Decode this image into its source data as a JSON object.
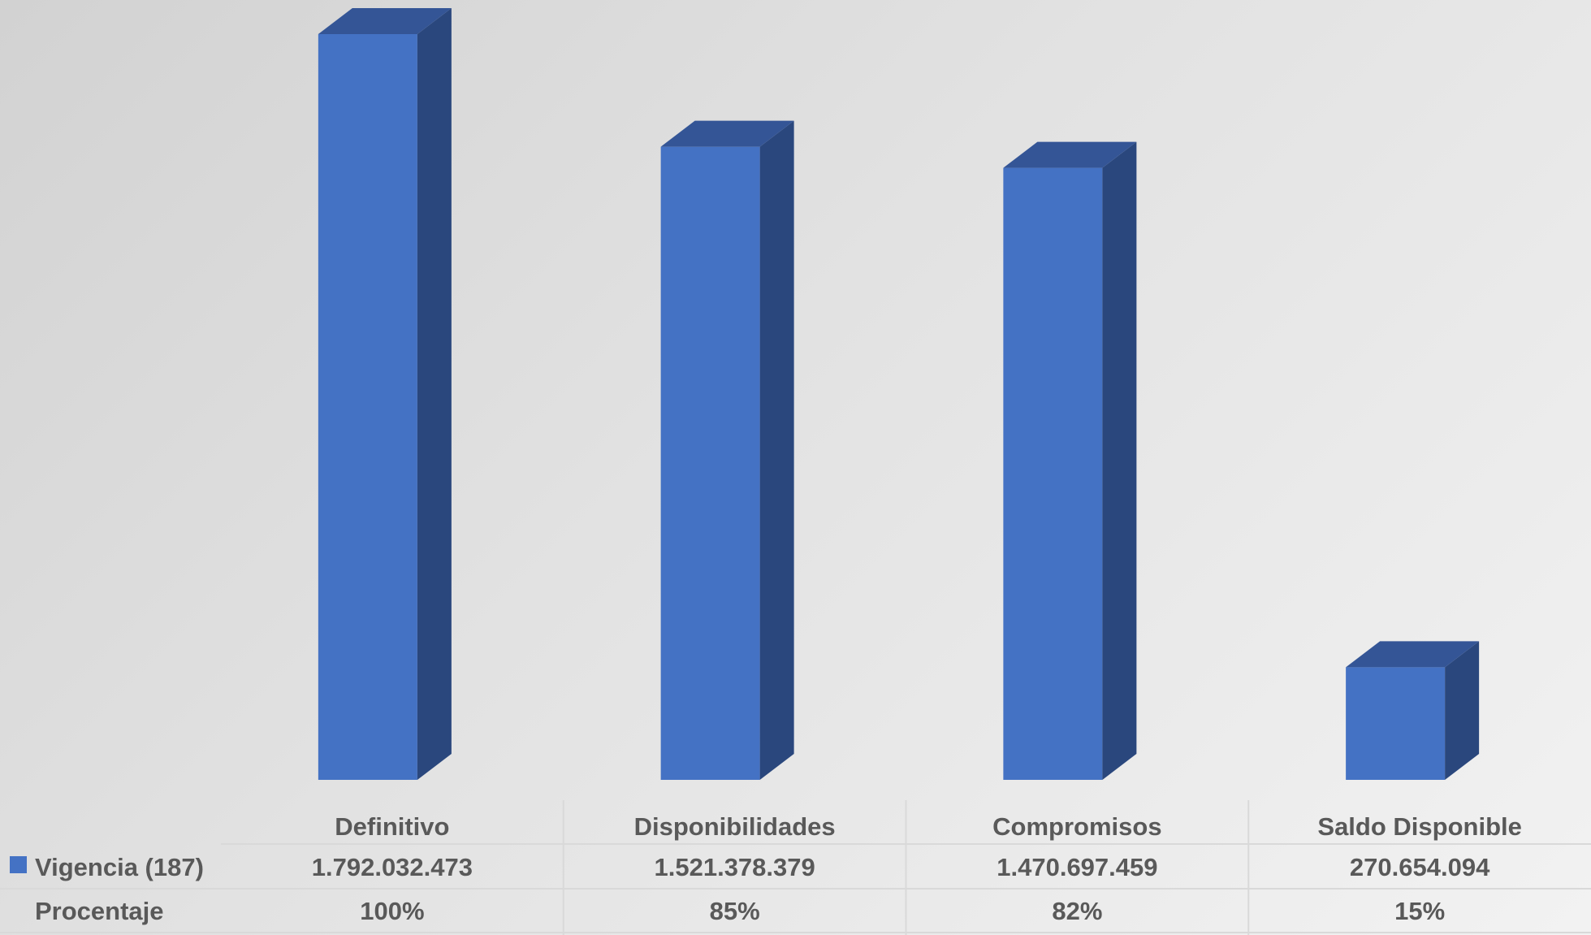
{
  "chart_data": {
    "type": "bar",
    "style": "3d-column",
    "categories": [
      "Definitivo",
      "Disponibilidades",
      "Compromisos",
      "Saldo Disponible"
    ],
    "series": [
      {
        "name": "Vigencia (187)",
        "values": [
          1792032473,
          1521378379,
          1470697459,
          270654094
        ],
        "value_labels": [
          "1.792.032.473",
          "1.521.378.379",
          "1.470.697.459",
          "270.654.094"
        ],
        "color": "#4472C4"
      }
    ],
    "data_table": {
      "rows": [
        {
          "label": "Vigencia (187)",
          "values": [
            "1.792.032.473",
            "1.521.378.379",
            "1.470.697.459",
            "270.654.094"
          ],
          "legend_key": true
        },
        {
          "label": "Procentaje",
          "values": [
            "100%",
            "85%",
            "82%",
            "15%"
          ],
          "legend_key": false
        }
      ]
    },
    "ylim": [
      0,
      1792032473
    ],
    "grid": false,
    "legend": "data-table",
    "colors": {
      "front": "#4472C4",
      "side": "#2A477D",
      "top": "#345596",
      "text": "#595959",
      "table_line": "#D9D9D9"
    }
  }
}
